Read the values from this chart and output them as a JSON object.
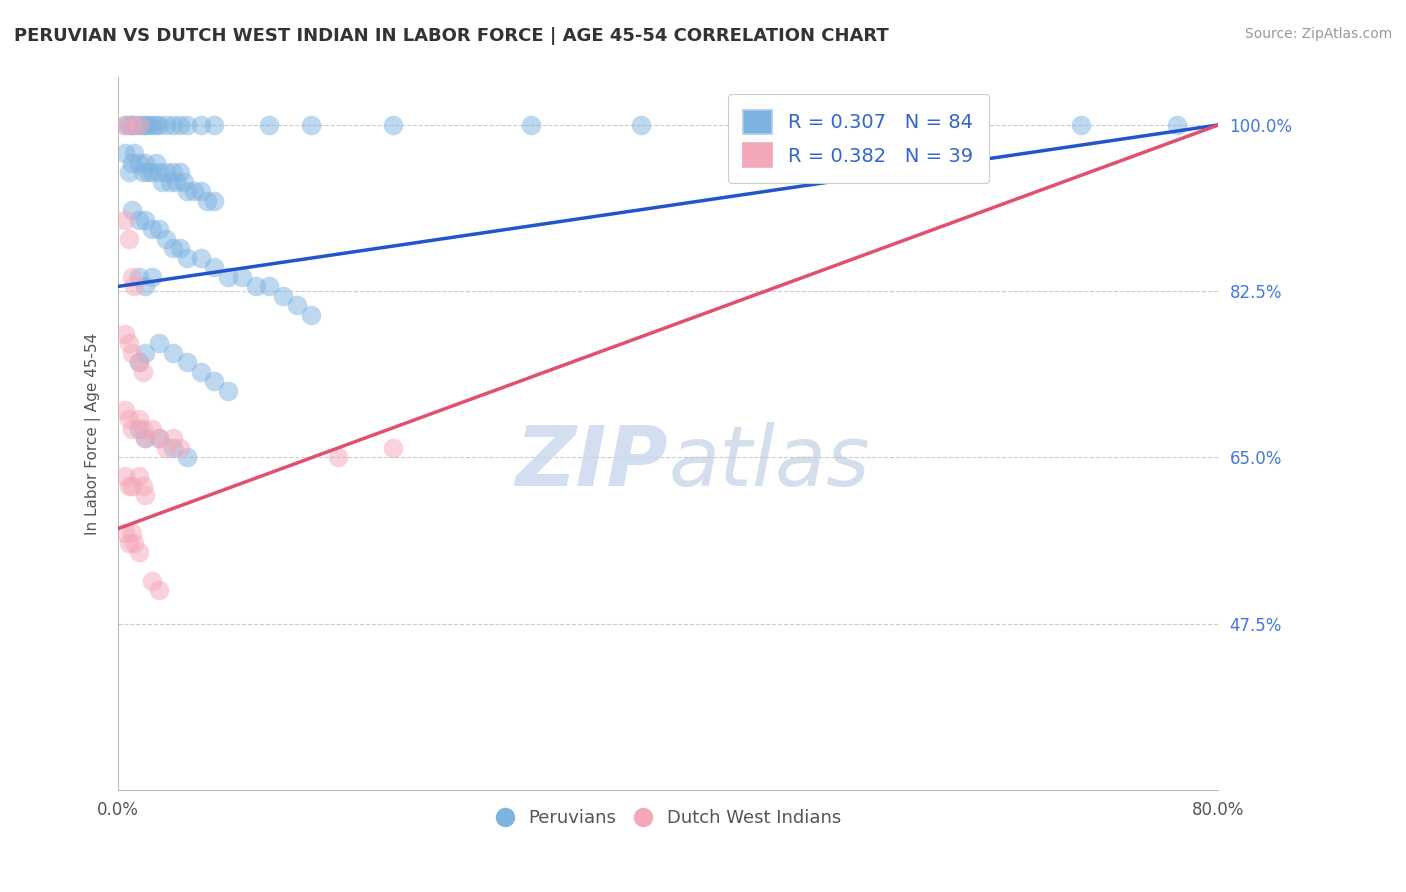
{
  "title": "PERUVIAN VS DUTCH WEST INDIAN IN LABOR FORCE | AGE 45-54 CORRELATION CHART",
  "source": "Source: ZipAtlas.com",
  "xlabel_bottom_left": "0.0%",
  "xlabel_bottom_right": "80.0%",
  "ylabel_label": "In Labor Force | Age 45-54",
  "y_tick_labels": [
    "100.0%",
    "82.5%",
    "65.0%",
    "47.5%"
  ],
  "y_tick_values": [
    1.0,
    0.825,
    0.65,
    0.475
  ],
  "x_min": 0.0,
  "x_max": 0.8,
  "y_min": 0.3,
  "y_max": 1.05,
  "watermark_zip": "ZIP",
  "watermark_atlas": "atlas",
  "blue_R": 0.307,
  "blue_N": 84,
  "pink_R": 0.382,
  "pink_N": 39,
  "blue_color": "#7EB3E0",
  "pink_color": "#F4A7B9",
  "blue_line_color": "#2255CC",
  "pink_line_color": "#E05070",
  "blue_line_x0": 0.0,
  "blue_line_y0": 0.83,
  "blue_line_x1": 0.8,
  "blue_line_y1": 1.0,
  "pink_line_x0": 0.0,
  "pink_line_y0": 0.575,
  "pink_line_x1": 0.8,
  "pink_line_y1": 1.0,
  "blue_scatter": [
    [
      0.005,
      1.0
    ],
    [
      0.008,
      1.0
    ],
    [
      0.01,
      1.0
    ],
    [
      0.012,
      1.0
    ],
    [
      0.015,
      1.0
    ],
    [
      0.018,
      1.0
    ],
    [
      0.02,
      1.0
    ],
    [
      0.022,
      1.0
    ],
    [
      0.025,
      1.0
    ],
    [
      0.028,
      1.0
    ],
    [
      0.03,
      1.0
    ],
    [
      0.035,
      1.0
    ],
    [
      0.04,
      1.0
    ],
    [
      0.045,
      1.0
    ],
    [
      0.05,
      1.0
    ],
    [
      0.06,
      1.0
    ],
    [
      0.07,
      1.0
    ],
    [
      0.11,
      1.0
    ],
    [
      0.14,
      1.0
    ],
    [
      0.2,
      1.0
    ],
    [
      0.3,
      1.0
    ],
    [
      0.38,
      1.0
    ],
    [
      0.7,
      1.0
    ],
    [
      0.77,
      1.0
    ],
    [
      0.005,
      0.97
    ],
    [
      0.008,
      0.95
    ],
    [
      0.01,
      0.96
    ],
    [
      0.012,
      0.97
    ],
    [
      0.015,
      0.96
    ],
    [
      0.018,
      0.95
    ],
    [
      0.02,
      0.96
    ],
    [
      0.022,
      0.95
    ],
    [
      0.025,
      0.95
    ],
    [
      0.028,
      0.96
    ],
    [
      0.03,
      0.95
    ],
    [
      0.032,
      0.94
    ],
    [
      0.035,
      0.95
    ],
    [
      0.038,
      0.94
    ],
    [
      0.04,
      0.95
    ],
    [
      0.042,
      0.94
    ],
    [
      0.045,
      0.95
    ],
    [
      0.048,
      0.94
    ],
    [
      0.05,
      0.93
    ],
    [
      0.055,
      0.93
    ],
    [
      0.06,
      0.93
    ],
    [
      0.065,
      0.92
    ],
    [
      0.07,
      0.92
    ],
    [
      0.01,
      0.91
    ],
    [
      0.015,
      0.9
    ],
    [
      0.02,
      0.9
    ],
    [
      0.025,
      0.89
    ],
    [
      0.03,
      0.89
    ],
    [
      0.035,
      0.88
    ],
    [
      0.04,
      0.87
    ],
    [
      0.045,
      0.87
    ],
    [
      0.05,
      0.86
    ],
    [
      0.06,
      0.86
    ],
    [
      0.07,
      0.85
    ],
    [
      0.08,
      0.84
    ],
    [
      0.09,
      0.84
    ],
    [
      0.1,
      0.83
    ],
    [
      0.11,
      0.83
    ],
    [
      0.12,
      0.82
    ],
    [
      0.13,
      0.81
    ],
    [
      0.14,
      0.8
    ],
    [
      0.015,
      0.84
    ],
    [
      0.02,
      0.83
    ],
    [
      0.025,
      0.84
    ],
    [
      0.015,
      0.75
    ],
    [
      0.02,
      0.76
    ],
    [
      0.03,
      0.77
    ],
    [
      0.04,
      0.76
    ],
    [
      0.05,
      0.75
    ],
    [
      0.06,
      0.74
    ],
    [
      0.07,
      0.73
    ],
    [
      0.08,
      0.72
    ],
    [
      0.015,
      0.68
    ],
    [
      0.02,
      0.67
    ],
    [
      0.03,
      0.67
    ],
    [
      0.04,
      0.66
    ],
    [
      0.05,
      0.65
    ]
  ],
  "pink_scatter": [
    [
      0.005,
      1.0
    ],
    [
      0.01,
      1.0
    ],
    [
      0.015,
      1.0
    ],
    [
      0.5,
      1.0
    ],
    [
      0.005,
      0.9
    ],
    [
      0.008,
      0.88
    ],
    [
      0.01,
      0.84
    ],
    [
      0.012,
      0.83
    ],
    [
      0.005,
      0.78
    ],
    [
      0.008,
      0.77
    ],
    [
      0.01,
      0.76
    ],
    [
      0.015,
      0.75
    ],
    [
      0.018,
      0.74
    ],
    [
      0.005,
      0.7
    ],
    [
      0.008,
      0.69
    ],
    [
      0.01,
      0.68
    ],
    [
      0.015,
      0.69
    ],
    [
      0.018,
      0.68
    ],
    [
      0.02,
      0.67
    ],
    [
      0.025,
      0.68
    ],
    [
      0.03,
      0.67
    ],
    [
      0.035,
      0.66
    ],
    [
      0.04,
      0.67
    ],
    [
      0.045,
      0.66
    ],
    [
      0.005,
      0.63
    ],
    [
      0.008,
      0.62
    ],
    [
      0.01,
      0.62
    ],
    [
      0.015,
      0.63
    ],
    [
      0.018,
      0.62
    ],
    [
      0.02,
      0.61
    ],
    [
      0.005,
      0.57
    ],
    [
      0.008,
      0.56
    ],
    [
      0.01,
      0.57
    ],
    [
      0.012,
      0.56
    ],
    [
      0.015,
      0.55
    ],
    [
      0.16,
      0.65
    ],
    [
      0.2,
      0.66
    ],
    [
      0.025,
      0.52
    ],
    [
      0.03,
      0.51
    ]
  ]
}
